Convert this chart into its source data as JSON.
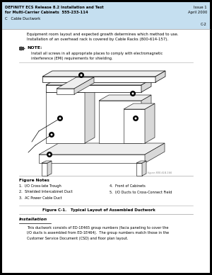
{
  "bg_color": "#000000",
  "page_bg": "#ffffff",
  "header_bg": "#c5dff0",
  "header_title_left": "DEFINITY ECS Release 8.2 Installation and Test\nfor Multi-Carrier Cabinets  555-233-114",
  "header_title_right": "Issue 1\nApril 2000",
  "header_sub_left": "C   Cable Ductwork",
  "header_sub_right": "C-2",
  "body_text1": "Equipment room layout and expected growth determines which method to use.\nInstallation of an overhead rack is covered by Cable Racks (800-614-157).",
  "note_label": "NOTE:",
  "note_text": "Install all screws in all appropriate places to comply with electromagnetic\ninterference (EMI) requirements for shielding.",
  "fig_credit": "figure 800-614-166",
  "figure_caption": "Figure C-1.   Typical Layout of Assembled Ductwork",
  "figure_notes_title": "Figure Notes",
  "figure_notes_left": [
    "1.  I/O Cross-late Trough",
    "2.  Shielded Intercabinet Duct",
    "3.  AC Power Cable Duct"
  ],
  "figure_notes_right": [
    "4.  Front of Cabinets",
    "5.  I/O Ducts to Cross-Connect Field"
  ],
  "installation_title": "Installation",
  "installation_text": "This ductwork consists of ED-1E465 group numbers (facia paneling to cover the\nI/O ducts is assembled from ED-1E464).  The group numbers match those in the\nCustomer Service Document (CSD) and floor plan layout."
}
